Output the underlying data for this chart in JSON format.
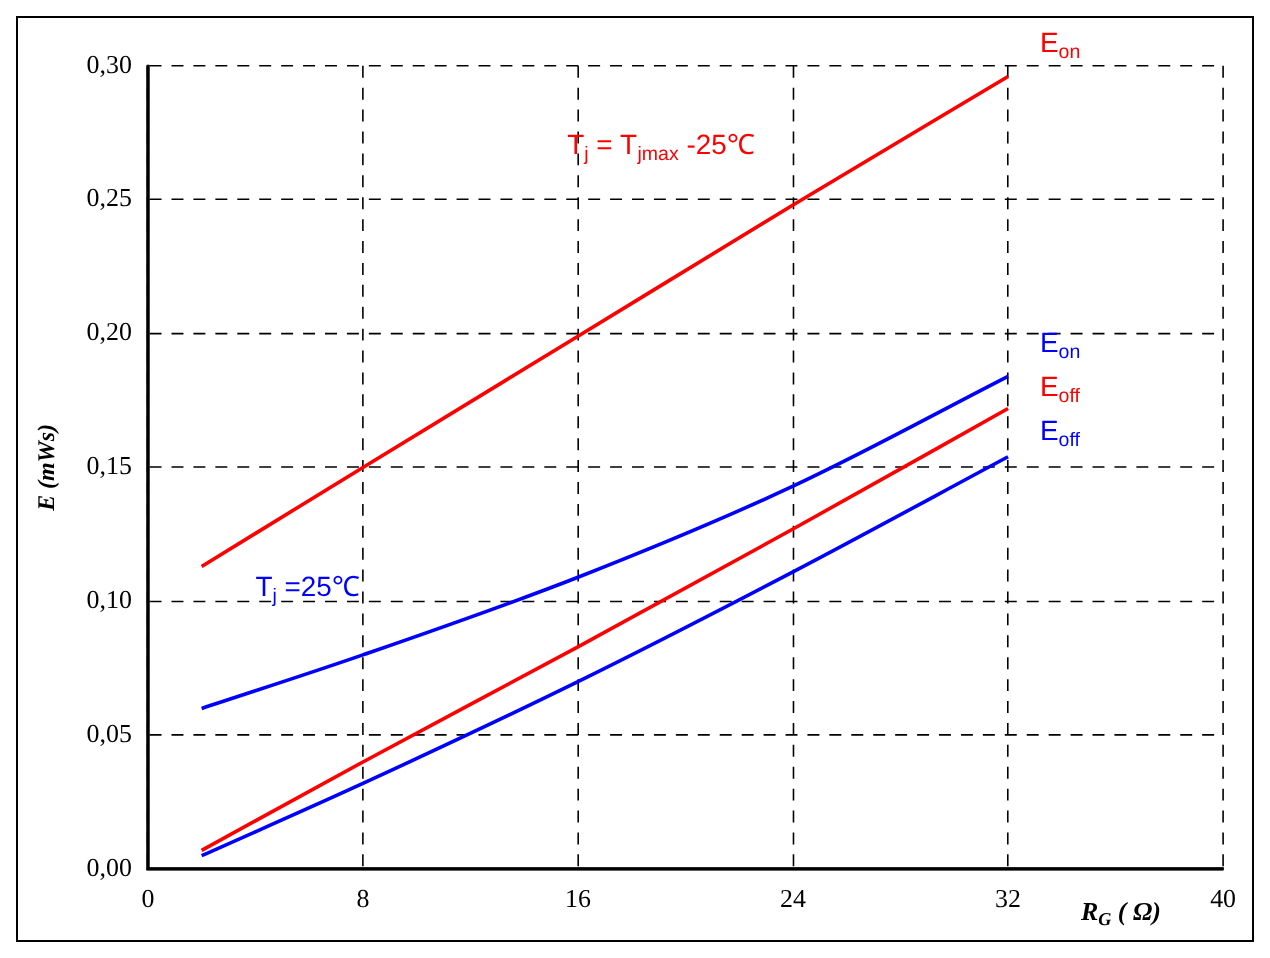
{
  "chart_data": {
    "type": "line",
    "xlabel": "R$_{G}$ ( Ω)",
    "ylabel": "E (mWs)",
    "x": [
      2,
      8,
      16,
      24,
      32
    ],
    "series": [
      {
        "name": "E$_{on}$",
        "color": "#ff0000",
        "values": [
          0.113,
          0.15,
          0.199,
          0.248,
          0.296
        ]
      },
      {
        "name": "E$_{on}$",
        "color": "#0000ff",
        "values": [
          0.06,
          0.08,
          0.109,
          0.143,
          0.184
        ]
      },
      {
        "name": "E$_{off}$",
        "color": "#ff0000",
        "values": [
          0.007,
          0.04,
          0.083,
          0.127,
          0.172
        ]
      },
      {
        "name": "E$_{off}$",
        "color": "#0000ff",
        "values": [
          0.005,
          0.032,
          0.07,
          0.111,
          0.154
        ]
      }
    ],
    "annotations": [
      "T$_{j}$ = T$_{jmax}$ -25℃",
      "T$_{j}$ =25℃"
    ],
    "xlim": [
      0,
      40
    ],
    "xticks": [
      0,
      8,
      16,
      24,
      32,
      40
    ],
    "ylim": [
      0,
      0.3
    ],
    "yticks": [
      {
        "value": 0,
        "label": "0,00"
      },
      {
        "value": 0.05,
        "label": "0,05"
      },
      {
        "value": 0.1,
        "label": "0,10"
      },
      {
        "value": 0.15,
        "label": "0,15"
      },
      {
        "value": 0.2,
        "label": "0,20"
      },
      {
        "value": 0.25,
        "label": "0,25"
      },
      {
        "value": 0.3,
        "label": "0,30"
      }
    ],
    "grid": true,
    "legend": false,
    "marker": "none",
    "line_style": "solid"
  }
}
